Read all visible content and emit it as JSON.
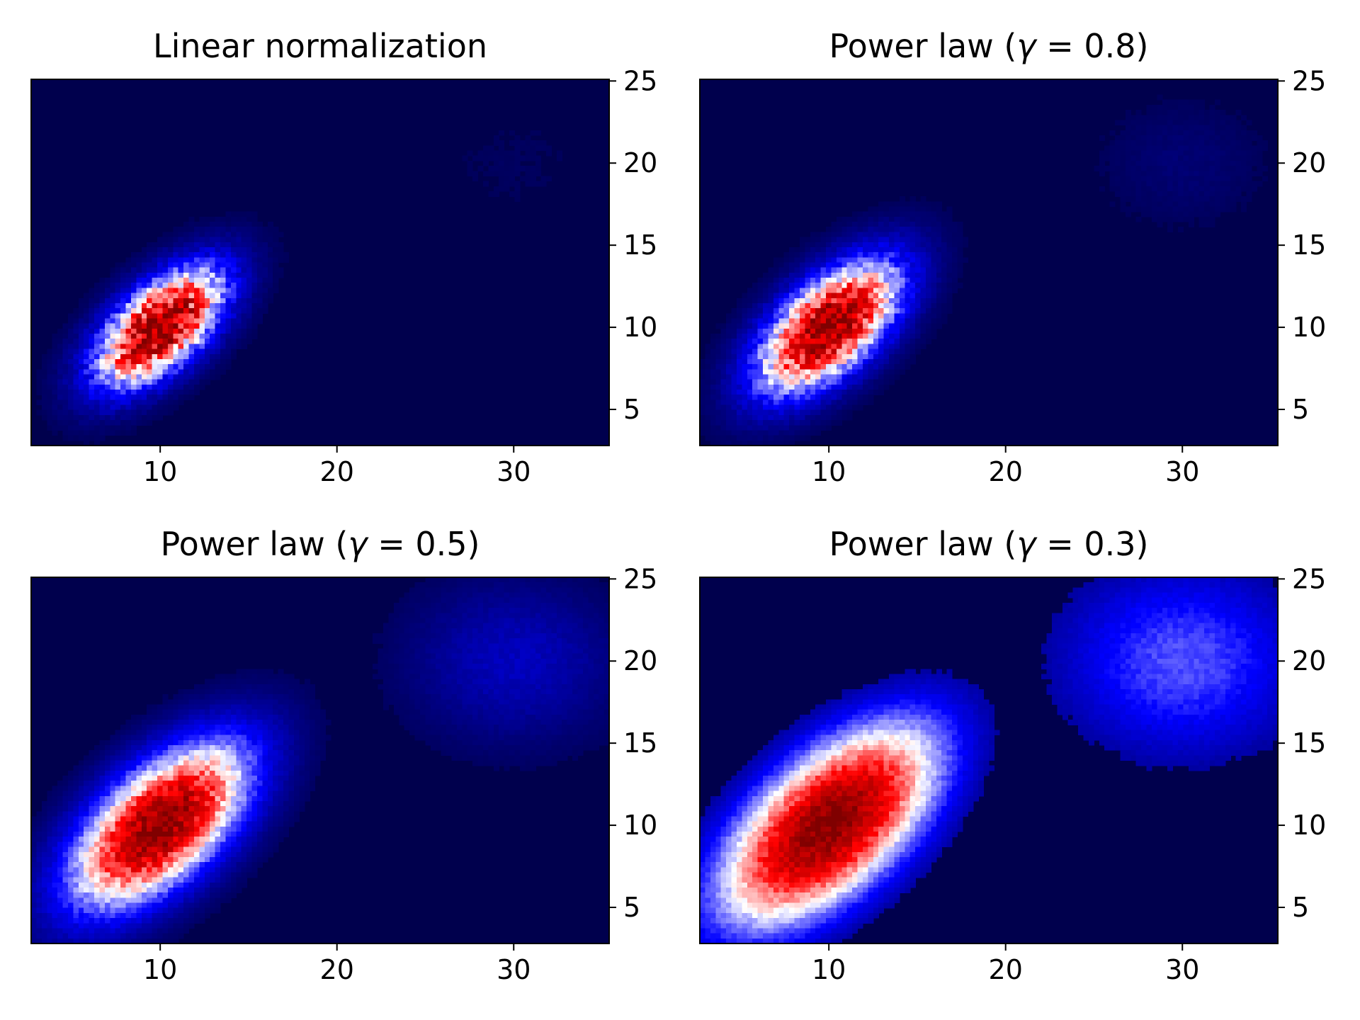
{
  "chart_data": [
    {
      "type": "heatmap",
      "title_prefix": "Linear normalization",
      "gamma": null,
      "x_ticks": [
        10,
        20,
        30
      ],
      "y_ticks": [
        5,
        10,
        15,
        20,
        25
      ],
      "xlim": [
        2.7,
        35.4
      ],
      "ylim": [
        2.8,
        25.1
      ],
      "y_axis_position": "right",
      "colormap": "seismic",
      "blobs": [
        {
          "cx": 10,
          "cy": 10,
          "sx": 2.5,
          "sy": 2.5,
          "rho": 0.6,
          "amplitude": 1.0
        },
        {
          "cx": 30,
          "cy": 20,
          "sx": 3.0,
          "sy": 2.5,
          "rho": 0.0,
          "amplitude": 0.025
        }
      ]
    },
    {
      "type": "heatmap",
      "title_prefix": "Power law (",
      "gamma_symbol": "γ",
      "gamma_expr": " = 0.8)",
      "gamma": 0.8,
      "x_ticks": [
        10,
        20,
        30
      ],
      "y_ticks": [
        5,
        10,
        15,
        20,
        25
      ],
      "xlim": [
        2.7,
        35.4
      ],
      "ylim": [
        2.8,
        25.1
      ],
      "y_axis_position": "right",
      "colormap": "seismic",
      "blobs": [
        {
          "cx": 10,
          "cy": 10,
          "sx": 2.5,
          "sy": 2.5,
          "rho": 0.6,
          "amplitude": 1.0
        },
        {
          "cx": 30,
          "cy": 20,
          "sx": 3.0,
          "sy": 2.5,
          "rho": 0.0,
          "amplitude": 0.025
        }
      ]
    },
    {
      "type": "heatmap",
      "title_prefix": "Power law (",
      "gamma_symbol": "γ",
      "gamma_expr": " = 0.5)",
      "gamma": 0.5,
      "x_ticks": [
        10,
        20,
        30
      ],
      "y_ticks": [
        5,
        10,
        15,
        20,
        25
      ],
      "xlim": [
        2.7,
        35.4
      ],
      "ylim": [
        2.8,
        25.1
      ],
      "y_axis_position": "right",
      "colormap": "seismic",
      "blobs": [
        {
          "cx": 10,
          "cy": 10,
          "sx": 2.5,
          "sy": 2.5,
          "rho": 0.6,
          "amplitude": 1.0
        },
        {
          "cx": 30,
          "cy": 20,
          "sx": 3.0,
          "sy": 2.5,
          "rho": 0.0,
          "amplitude": 0.025
        }
      ]
    },
    {
      "type": "heatmap",
      "title_prefix": "Power law (",
      "gamma_symbol": "γ",
      "gamma_expr": " = 0.3)",
      "gamma": 0.3,
      "x_ticks": [
        10,
        20,
        30
      ],
      "y_ticks": [
        5,
        10,
        15,
        20,
        25
      ],
      "xlim": [
        2.7,
        35.4
      ],
      "ylim": [
        2.8,
        25.1
      ],
      "y_axis_position": "right",
      "colormap": "seismic",
      "blobs": [
        {
          "cx": 10,
          "cy": 10,
          "sx": 2.5,
          "sy": 2.5,
          "rho": 0.6,
          "amplitude": 1.0
        },
        {
          "cx": 30,
          "cy": 20,
          "sx": 3.0,
          "sy": 2.5,
          "rho": 0.0,
          "amplitude": 0.025
        }
      ]
    }
  ]
}
